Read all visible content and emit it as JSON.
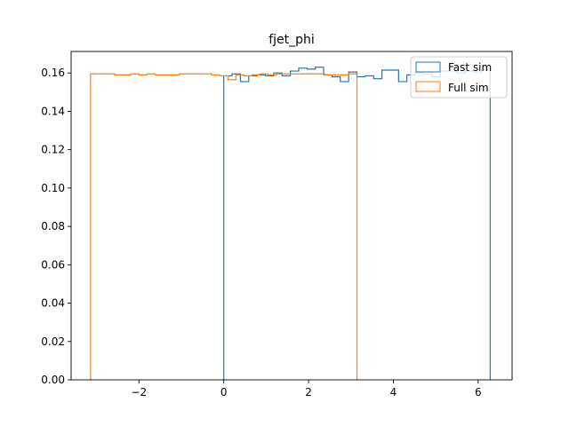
{
  "chart_data": {
    "type": "histogram-step",
    "title": "fjet_phi",
    "xlabel": "",
    "ylabel": "",
    "xlim": [
      -3.6,
      6.8
    ],
    "ylim": [
      0,
      0.1712
    ],
    "xticks": [
      -2,
      0,
      2,
      4,
      6
    ],
    "yticks": [
      0.0,
      0.02,
      0.04,
      0.06,
      0.08,
      0.1,
      0.12,
      0.14,
      0.16
    ],
    "xtick_labels": [
      "−2",
      "0",
      "2",
      "4",
      "6"
    ],
    "ytick_labels": [
      "0.00",
      "0.02",
      "0.04",
      "0.06",
      "0.08",
      "0.10",
      "0.12",
      "0.14",
      "0.16"
    ],
    "legend": {
      "placement": "top-right",
      "entries": [
        "Fast sim",
        "Full sim"
      ]
    },
    "grid": false,
    "series": [
      {
        "name": "Fast sim",
        "color": "#1f77b4",
        "x_start": 0.0,
        "x_end": 6.283,
        "values": [
          0.1585,
          0.1595,
          0.1555,
          0.1585,
          0.159,
          0.1585,
          0.16,
          0.1585,
          0.161,
          0.1625,
          0.162,
          0.163,
          0.159,
          0.158,
          0.1555,
          0.1605,
          0.158,
          0.1585,
          0.157,
          0.1615,
          0.1615,
          0.1555,
          0.159,
          0.16,
          0.1595,
          0.158,
          0.161,
          0.161,
          0.16,
          0.161,
          0.1605,
          0.1615
        ]
      },
      {
        "name": "Full sim",
        "color": "#ff7f0e",
        "x_start": -3.1416,
        "x_end": 3.1416,
        "values": [
          0.1595,
          0.1595,
          0.1595,
          0.159,
          0.159,
          0.1595,
          0.159,
          0.1595,
          0.159,
          0.159,
          0.159,
          0.1595,
          0.1595,
          0.1595,
          0.1595,
          0.159,
          0.1585,
          0.1565,
          0.159,
          0.1585,
          0.159,
          0.1595,
          0.159,
          0.1595,
          0.1595,
          0.1595,
          0.1595,
          0.1595,
          0.1595,
          0.159,
          0.159,
          0.159,
          0.1595
        ]
      }
    ]
  }
}
